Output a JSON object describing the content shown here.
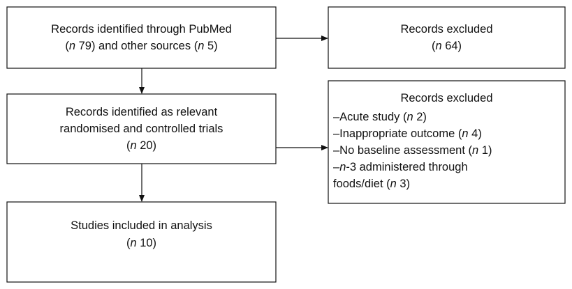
{
  "nodes": [
    {
      "lines": [
        "Records identified through PubMed",
        "(n 79) and other sources (n 5)"
      ]
    },
    {
      "lines": [
        "Records excluded",
        "(n 64)"
      ]
    },
    {
      "lines": [
        "Records identified as relevant",
        "randomised and controlled trials",
        "(n 20)"
      ]
    },
    {
      "title": "Records excluded",
      "lines": [
        "–Acute study (n 2)",
        "–Inappropriate outcome (n 4)",
        "–No baseline assessment (n 1)",
        "–n-3 administered through",
        "foods/diet (n 3)"
      ]
    },
    {
      "lines": [
        "Studies included in analysis",
        "(n 10)"
      ]
    }
  ]
}
